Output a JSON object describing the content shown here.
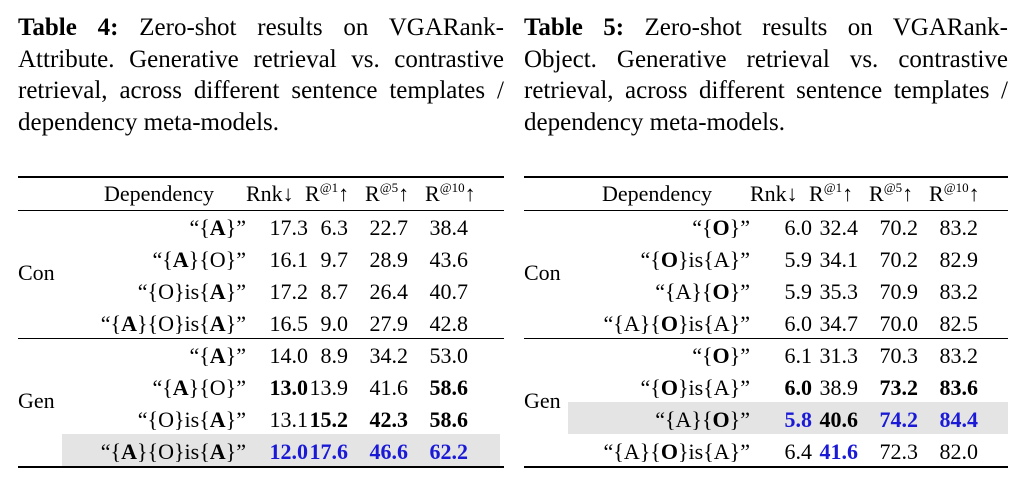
{
  "table4": {
    "caption_label": "Table 4:",
    "caption_text": " Zero-shot results on VGARank-Attribute. Generative retrieval vs. contrastive retrieval, across different sentence templates / dependency meta-models.",
    "headers": {
      "dep": "Dependency",
      "rnk": "Rnk↓",
      "r1": "R",
      "r1_sup": "@1",
      "r1_arrow": "↑",
      "r5": "R",
      "r5_sup": "@5",
      "r5_arrow": "↑",
      "r10": "R",
      "r10_sup": "@10",
      "r10_arrow": "↑"
    },
    "groups": [
      "Con",
      "Gen"
    ],
    "rows": [
      {
        "dep": "“{A}”",
        "rnk": "17.3",
        "r1": "6.3",
        "r5": "22.7",
        "r10": "38.4"
      },
      {
        "dep": "“{A}{O}”",
        "rnk": "16.1",
        "r1": "9.7",
        "r5": "28.9",
        "r10": "43.6"
      },
      {
        "dep": "“{O}is{A}”",
        "rnk": "17.2",
        "r1": "8.7",
        "r5": "26.4",
        "r10": "40.7"
      },
      {
        "dep": "“{A}{O}is{A}”",
        "rnk": "16.5",
        "r1": "9.0",
        "r5": "27.9",
        "r10": "42.8"
      },
      {
        "dep": "“{A}”",
        "rnk": "14.0",
        "r1": "8.9",
        "r5": "34.2",
        "r10": "53.0"
      },
      {
        "dep": "“{A}{O}”",
        "rnk": "13.0",
        "r1": "13.9",
        "r5": "41.6",
        "r10": "58.6"
      },
      {
        "dep": "“{O}is{A}”",
        "rnk": "13.1",
        "r1": "15.2",
        "r5": "42.3",
        "r10": "58.6"
      },
      {
        "dep": "“{A}{O}is{A}”",
        "rnk": "12.0",
        "r1": "17.6",
        "r5": "46.6",
        "r10": "62.2"
      }
    ]
  },
  "table5": {
    "caption_label": "Table 5:",
    "caption_text": " Zero-shot results on VGARank-Object. Generative retrieval vs. contrastive retrieval, across different sentence templates / dependency meta-models.",
    "headers": {
      "dep": "Dependency",
      "rnk": "Rnk↓",
      "r1": "R",
      "r1_sup": "@1",
      "r1_arrow": "↑",
      "r5": "R",
      "r5_sup": "@5",
      "r5_arrow": "↑",
      "r10": "R",
      "r10_sup": "@10",
      "r10_arrow": "↑"
    },
    "groups": [
      "Con",
      "Gen"
    ],
    "rows": [
      {
        "dep": "“{O}”",
        "rnk": "6.0",
        "r1": "32.4",
        "r5": "70.2",
        "r10": "83.2"
      },
      {
        "dep": "“{O}is{A}”",
        "rnk": "5.9",
        "r1": "34.1",
        "r5": "70.2",
        "r10": "82.9"
      },
      {
        "dep": "“{A}{O}”",
        "rnk": "5.9",
        "r1": "35.3",
        "r5": "70.9",
        "r10": "83.2"
      },
      {
        "dep": "“{A}{O}is{A}”",
        "rnk": "6.0",
        "r1": "34.7",
        "r5": "70.0",
        "r10": "82.5"
      },
      {
        "dep": "“{O}”",
        "rnk": "6.1",
        "r1": "31.3",
        "r5": "70.3",
        "r10": "83.2"
      },
      {
        "dep": "“{O}is{A}”",
        "rnk": "6.0",
        "r1": "38.9",
        "r5": "73.2",
        "r10": "83.6"
      },
      {
        "dep": "“{A}{O}”",
        "rnk": "5.8",
        "r1": "40.6",
        "r5": "74.2",
        "r10": "84.4"
      },
      {
        "dep": "“{A}{O}is{A}”",
        "rnk": "6.4",
        "r1": "41.6",
        "r5": "72.3",
        "r10": "82.0"
      }
    ]
  }
}
